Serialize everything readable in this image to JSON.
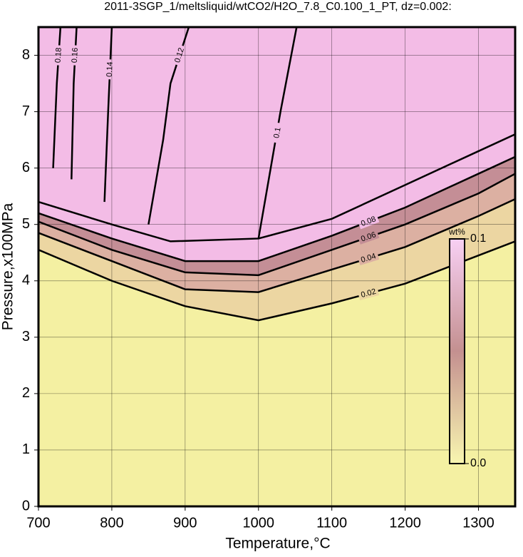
{
  "chart_data": {
    "type": "contour",
    "title": "2011-3SGP_1/meltsliquid/wtCO2/H2O_7.8_C0.100_1_PT, dz=0.002:",
    "xlabel": "Temperature,°C",
    "ylabel": "Pressure,x100MPa",
    "xlim": [
      700,
      1350
    ],
    "ylim": [
      0,
      8.5
    ],
    "xticks": [
      700,
      800,
      900,
      1000,
      1100,
      1200,
      1300
    ],
    "yticks": [
      0,
      1,
      2,
      3,
      4,
      5,
      6,
      7,
      8
    ],
    "grid": true,
    "background": "#f4f0a2",
    "contours": [
      {
        "level": 0.02,
        "fill": "#ecd6a2",
        "x": [
          700,
          800,
          900,
          1000,
          1100,
          1200,
          1300,
          1350
        ],
        "y": [
          4.55,
          4.0,
          3.55,
          3.3,
          3.6,
          3.95,
          4.45,
          4.7
        ]
      },
      {
        "level": 0.04,
        "fill": "#dcb0a2",
        "x": [
          700,
          800,
          900,
          1000,
          1100,
          1200,
          1300,
          1350
        ],
        "y": [
          4.85,
          4.35,
          3.85,
          3.8,
          4.2,
          4.6,
          5.15,
          5.45
        ]
      },
      {
        "level": 0.06,
        "fill": "#c48e96",
        "x": [
          700,
          800,
          900,
          1000,
          1100,
          1200,
          1300,
          1350
        ],
        "y": [
          5.05,
          4.55,
          4.15,
          4.1,
          4.55,
          5.0,
          5.55,
          5.9
        ]
      },
      {
        "level": 0.08,
        "fill": "#f3bce6",
        "x": [
          700,
          800,
          900,
          1000,
          1100,
          1200,
          1300,
          1350
        ],
        "y": [
          5.2,
          4.75,
          4.35,
          4.35,
          4.8,
          5.3,
          5.9,
          6.2
        ]
      },
      {
        "level": 0.1,
        "x": [
          700,
          800,
          880,
          1000,
          1010,
          1030,
          1052,
          null,
          1000,
          1100,
          1200,
          1300,
          1350
        ],
        "y": [
          5.4,
          5.0,
          4.7,
          4.75,
          5.5,
          7.0,
          8.5,
          null,
          4.75,
          5.1,
          5.7,
          6.3,
          6.6
        ]
      },
      {
        "level": 0.12,
        "x": [
          850,
          870,
          880,
          905
        ],
        "y": [
          5.0,
          6.5,
          7.5,
          8.5
        ]
      },
      {
        "level": 0.14,
        "x": [
          790,
          795,
          800
        ],
        "y": [
          5.4,
          7.0,
          8.5
        ]
      },
      {
        "level": 0.16,
        "x": [
          745,
          748,
          752
        ],
        "y": [
          5.8,
          7.5,
          8.5
        ]
      },
      {
        "level": 0.18,
        "x": [
          720,
          725,
          730
        ],
        "y": [
          6.0,
          7.5,
          8.5
        ]
      }
    ],
    "colorbar": {
      "title": "wt%",
      "lim": [
        0,
        0.1
      ],
      "colors": [
        "#f8f6b0",
        "#c49090",
        "#f8d0f4"
      ],
      "ticks": [
        {
          "value": 0,
          "label": "0.0"
        },
        {
          "value": 0.1,
          "label": "0.1"
        }
      ]
    }
  }
}
